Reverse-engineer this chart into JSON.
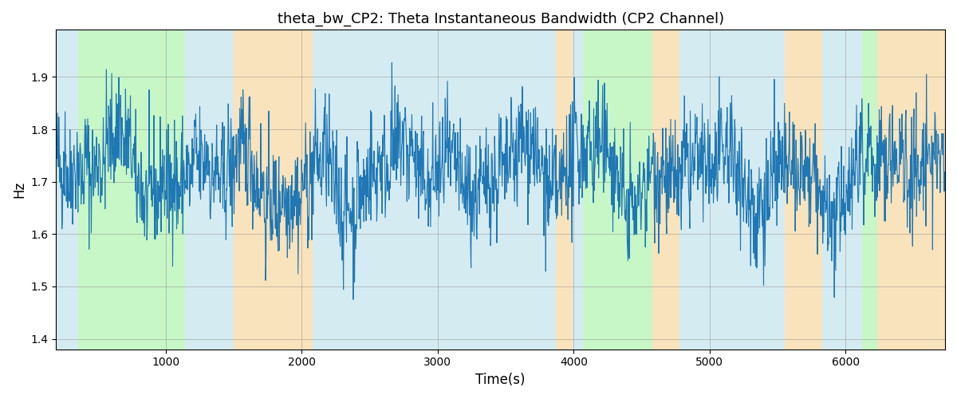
{
  "title": "theta_bw_CP2: Theta Instantaneous Bandwidth (CP2 Channel)",
  "xlabel": "Time(s)",
  "ylabel": "Hz",
  "ylim": [
    1.38,
    1.99
  ],
  "xlim": [
    195,
    6730
  ],
  "bg_bands": [
    {
      "xmin": 195,
      "xmax": 355,
      "color": "#add8e6",
      "alpha": 0.5
    },
    {
      "xmin": 355,
      "xmax": 1140,
      "color": "#90ee90",
      "alpha": 0.5
    },
    {
      "xmin": 1140,
      "xmax": 1500,
      "color": "#add8e6",
      "alpha": 0.5
    },
    {
      "xmin": 1500,
      "xmax": 2080,
      "color": "#f5c97a",
      "alpha": 0.5
    },
    {
      "xmin": 2080,
      "xmax": 3870,
      "color": "#add8e6",
      "alpha": 0.5
    },
    {
      "xmin": 3870,
      "xmax": 3990,
      "color": "#f5c97a",
      "alpha": 0.5
    },
    {
      "xmin": 3990,
      "xmax": 4070,
      "color": "#add8e6",
      "alpha": 0.5
    },
    {
      "xmin": 4070,
      "xmax": 4580,
      "color": "#90ee90",
      "alpha": 0.5
    },
    {
      "xmin": 4580,
      "xmax": 4780,
      "color": "#f5c97a",
      "alpha": 0.5
    },
    {
      "xmin": 4780,
      "xmax": 5550,
      "color": "#add8e6",
      "alpha": 0.5
    },
    {
      "xmin": 5550,
      "xmax": 5830,
      "color": "#f5c97a",
      "alpha": 0.5
    },
    {
      "xmin": 5830,
      "xmax": 6120,
      "color": "#add8e6",
      "alpha": 0.5
    },
    {
      "xmin": 6120,
      "xmax": 6230,
      "color": "#90ee90",
      "alpha": 0.5
    },
    {
      "xmin": 6230,
      "xmax": 6730,
      "color": "#f5c97a",
      "alpha": 0.5
    }
  ],
  "line_color": "#1f77b4",
  "line_width": 0.8,
  "grid": true,
  "seed": 42,
  "n_points": 2000,
  "signal_mean": 1.715,
  "signal_std": 0.055,
  "title_fontsize": 13,
  "axis_label_fontsize": 12,
  "yticks": [
    1.4,
    1.5,
    1.6,
    1.7,
    1.8,
    1.9
  ],
  "xticks": [
    1000,
    2000,
    3000,
    4000,
    5000,
    6000
  ]
}
